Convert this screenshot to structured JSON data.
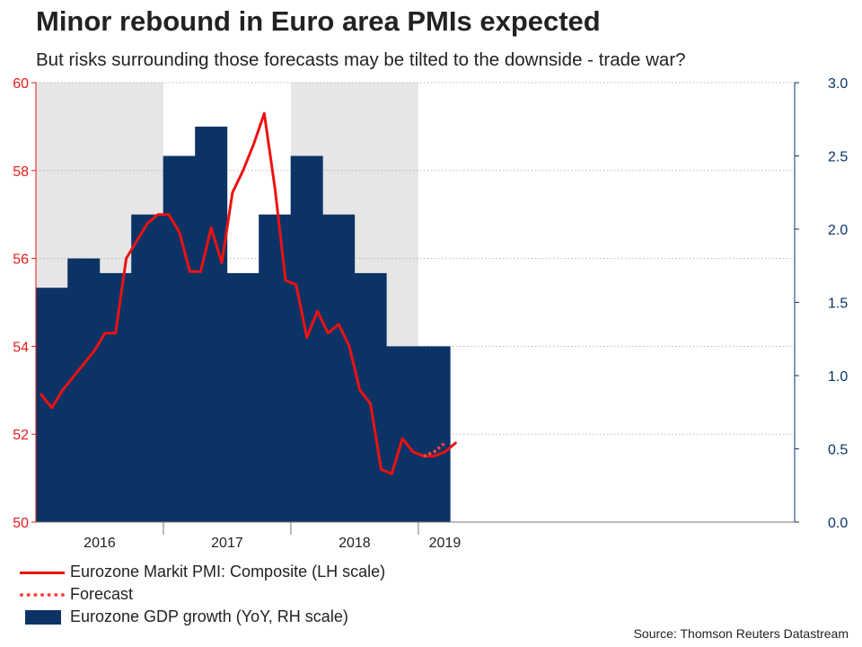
{
  "title": "Minor rebound in Euro area PMIs expected",
  "subtitle": "But risks surrounding those forecasts may be tilted to the downside - trade war?",
  "source": "Source: Thomson Reuters Datastream",
  "colors": {
    "pmi": "#ee1111",
    "forecast": "#ff4444",
    "gdp": "#0b3366",
    "left_axis": "#e31b1b",
    "right_axis": "#0b3366",
    "shade": "#e6e6e6"
  },
  "legend": [
    {
      "label": "Eurozone Markit PMI: Composite (LH scale)",
      "kind": "line",
      "color": "#ee1111"
    },
    {
      "label": "Forecast",
      "kind": "dotted",
      "color": "#ff4444"
    },
    {
      "label": "Eurozone GDP growth (YoY, RH scale)",
      "kind": "bar",
      "color": "#0b3366"
    }
  ],
  "chart_data": {
    "type": "bar+line",
    "x_start": "2016-01",
    "months_total": 36,
    "years": [
      {
        "label": "2016",
        "start": 0,
        "end": 12,
        "shaded": true
      },
      {
        "label": "2017",
        "start": 12,
        "end": 24,
        "shaded": false
      },
      {
        "label": "2018",
        "start": 24,
        "end": 36,
        "shaded": true
      },
      {
        "label": "2019",
        "start": 36,
        "end": 41,
        "shaded": false
      }
    ],
    "left_axis": {
      "label": "Eurozone Markit PMI: Composite",
      "min": 50,
      "max": 60,
      "ticks": [
        50,
        52,
        54,
        56,
        58,
        60
      ]
    },
    "right_axis": {
      "label": "Eurozone GDP growth (YoY)",
      "min": 0,
      "max": 3,
      "ticks": [
        "0.0",
        "0.5",
        "1.0",
        "1.5",
        "2.0",
        "2.5",
        "3.0"
      ]
    },
    "gridlines": true,
    "series": [
      {
        "name": "Eurozone GDP growth (YoY, RH scale)",
        "type": "bar",
        "axis": "right",
        "x_month": [
          1,
          4,
          7,
          10,
          13,
          16,
          19,
          22,
          25,
          28,
          31,
          34,
          37
        ],
        "values": [
          1.6,
          1.8,
          1.7,
          2.1,
          2.5,
          2.7,
          1.7,
          2.1,
          2.5,
          2.1,
          1.7,
          1.2,
          1.2
        ]
      },
      {
        "name": "Eurozone Markit PMI: Composite (LH scale)",
        "type": "line",
        "axis": "left",
        "x_month": [
          0,
          1,
          2,
          3,
          4,
          5,
          6,
          7,
          8,
          9,
          10,
          11,
          12,
          13,
          14,
          15,
          16,
          17,
          18,
          19,
          20,
          21,
          22,
          23,
          24,
          25,
          26,
          27,
          28,
          29,
          30,
          31,
          32,
          33,
          34,
          35,
          36,
          37,
          38,
          39
        ],
        "values": [
          52.9,
          52.6,
          53.0,
          53.3,
          53.6,
          53.9,
          54.3,
          54.3,
          56.0,
          56.4,
          56.8,
          57.0,
          57.0,
          56.6,
          55.7,
          55.7,
          56.7,
          55.9,
          57.5,
          58.0,
          58.6,
          59.3,
          57.6,
          55.5,
          55.4,
          54.2,
          54.8,
          54.3,
          54.5,
          54.0,
          53.0,
          52.7,
          51.2,
          51.1,
          51.9,
          51.6,
          51.5,
          51.5,
          51.6,
          51.8
        ]
      },
      {
        "name": "Forecast",
        "type": "line",
        "style": "dotted",
        "axis": "left",
        "x_month": [
          36,
          37,
          38
        ],
        "values": [
          51.5,
          51.6,
          51.8
        ]
      }
    ]
  }
}
